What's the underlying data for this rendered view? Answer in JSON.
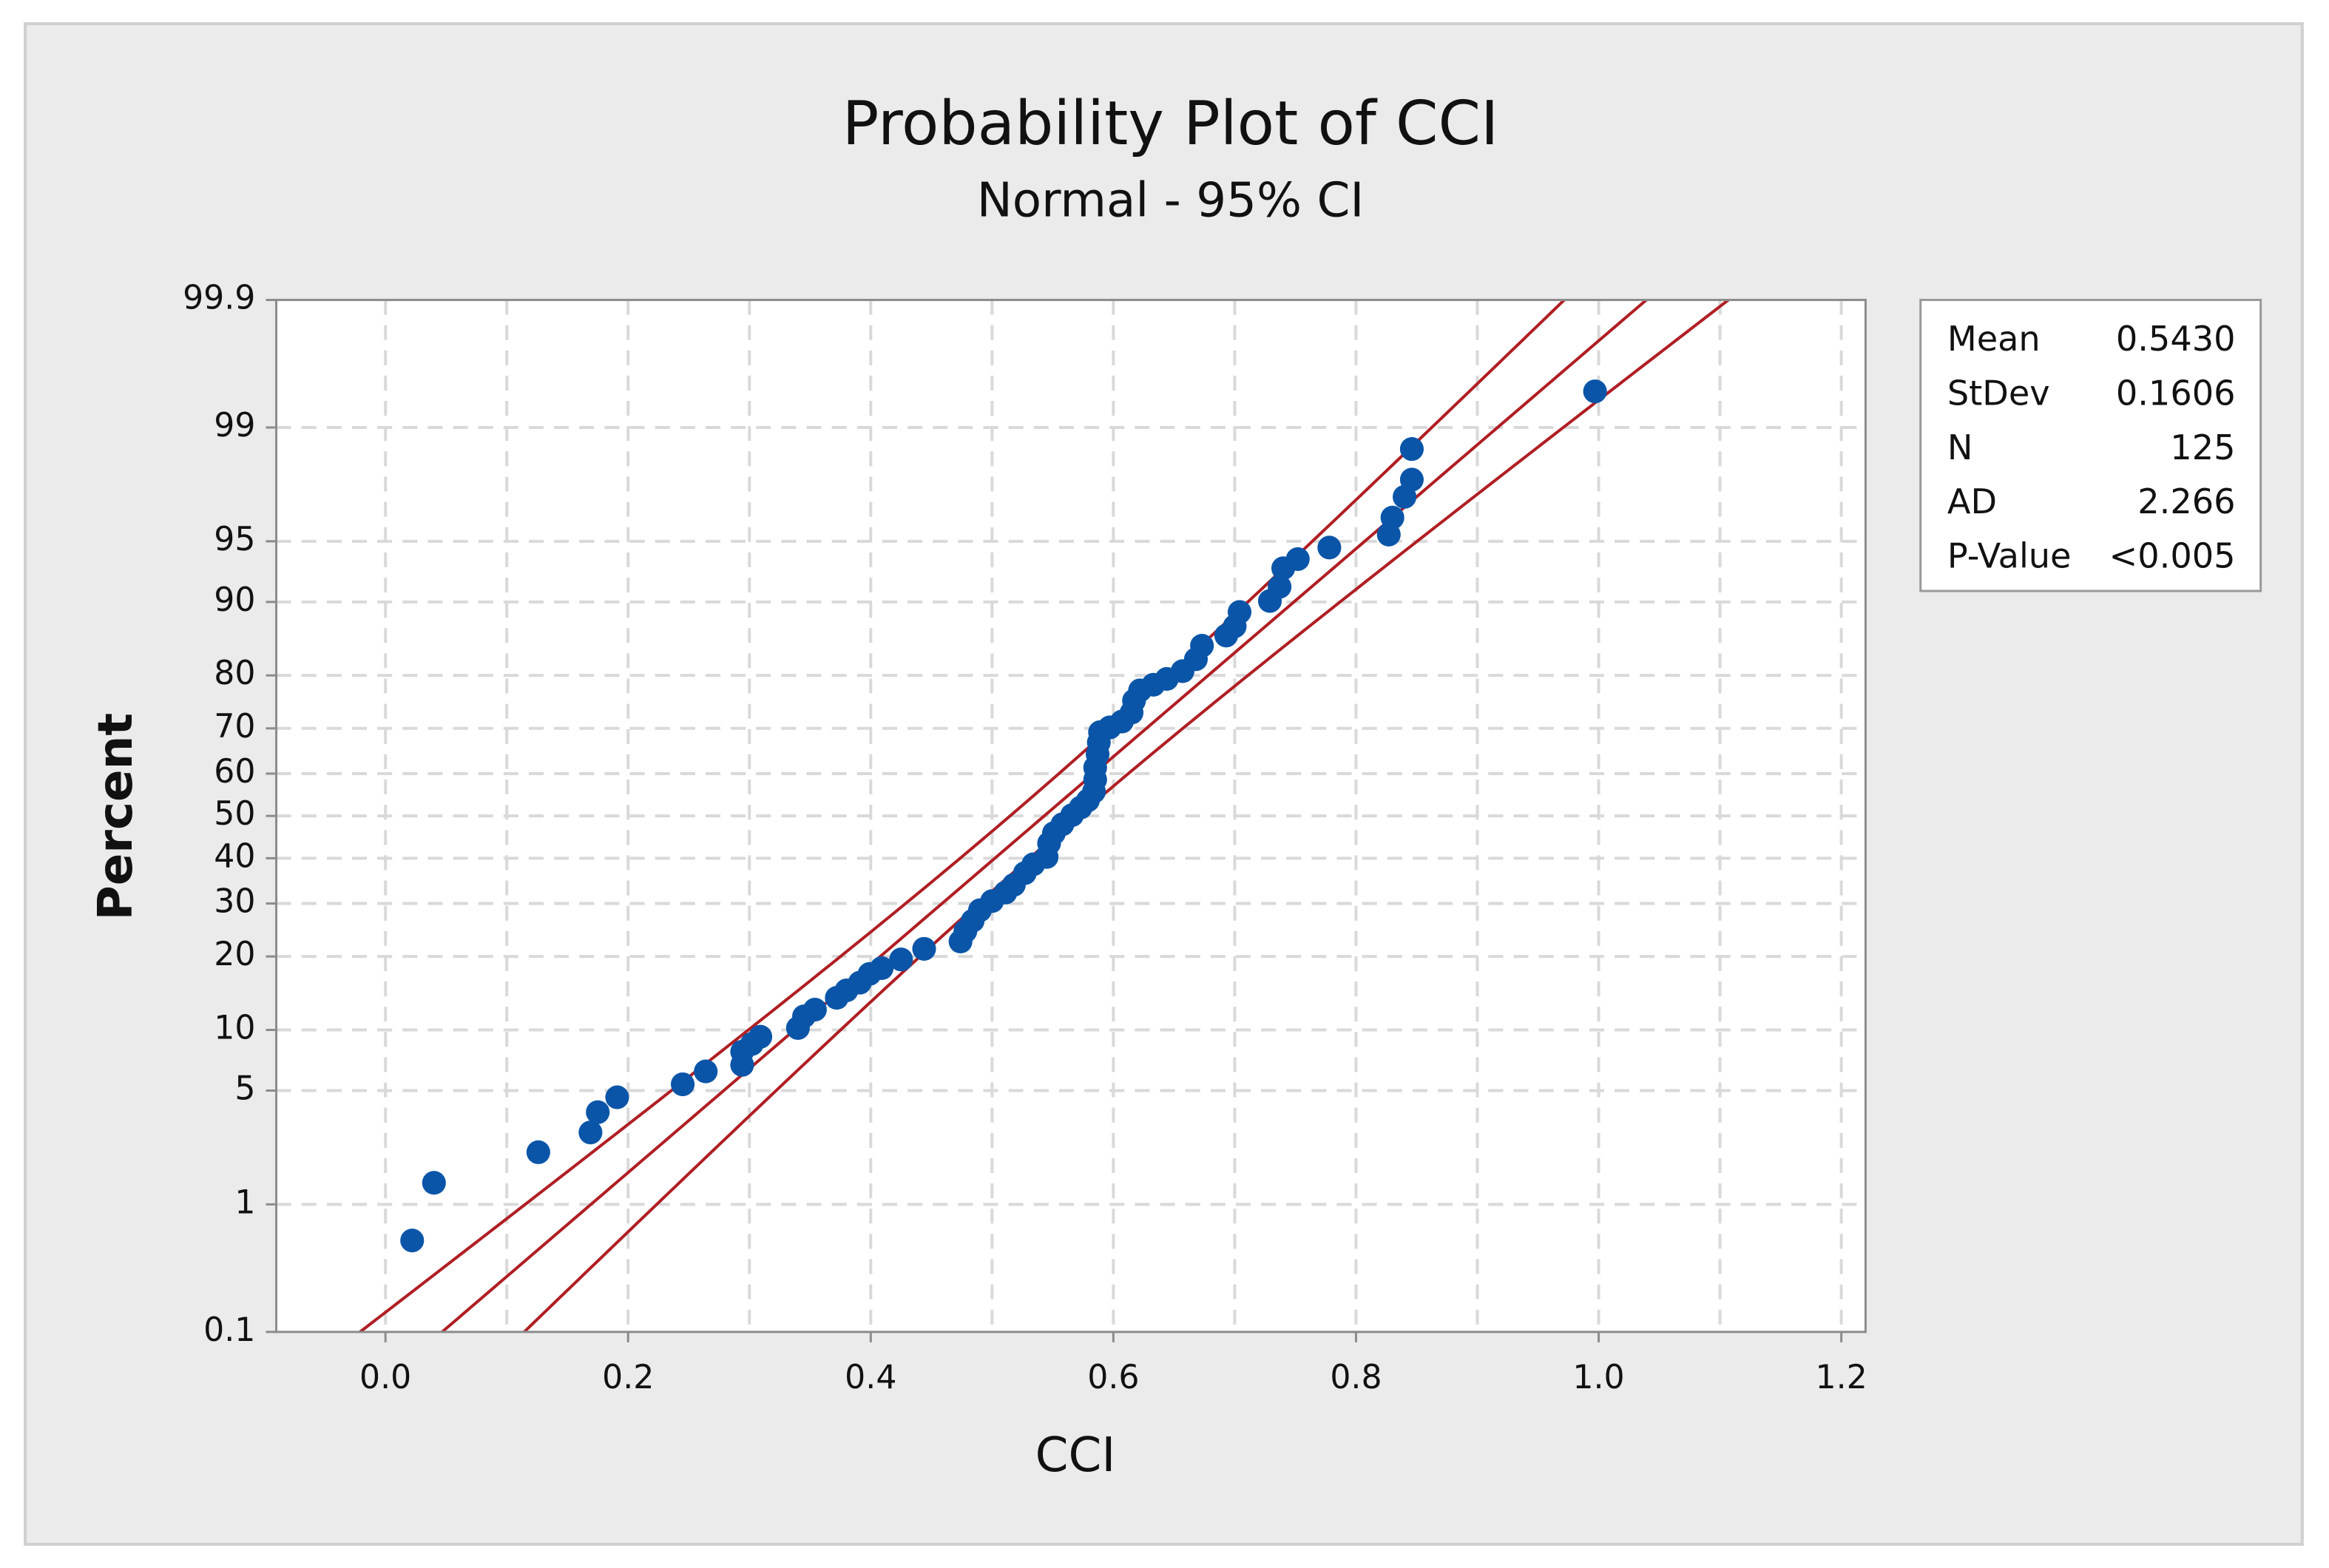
{
  "chart_data": {
    "type": "probability",
    "title": "Probability Plot of CCI",
    "subtitle": "Normal - 95% CI",
    "x_label": "CCI",
    "y_label": "Percent",
    "yscale": "probability",
    "distribution": "normal",
    "confidence": 95,
    "xlim": [
      -0.09,
      1.22
    ],
    "xticks": [
      {
        "value": 0,
        "label": "0.0"
      },
      0.2,
      0.4,
      0.6,
      0.8,
      {
        "value": 1,
        "label": "1.0"
      },
      1.2
    ],
    "xgrid_minor": [
      0.1,
      0.3,
      0.5,
      0.7,
      0.9,
      1.1
    ],
    "ylim": [
      0.1,
      99.9
    ],
    "yticks": [
      0.1,
      1,
      5,
      10,
      20,
      30,
      40,
      50,
      60,
      70,
      80,
      90,
      95,
      99,
      99.9
    ],
    "grid": true,
    "point_color": "#0a55a8",
    "line_color": "#b01e23",
    "x": [
      0.022,
      0.04,
      0.126,
      0.169,
      0.175,
      0.191,
      0.245,
      0.264,
      0.294,
      0.294,
      0.302,
      0.309,
      0.34,
      0.345,
      0.354,
      0.372,
      0.38,
      0.391,
      0.399,
      0.409,
      0.425,
      0.444,
      0.474,
      0.478,
      0.484,
      0.49,
      0.5,
      0.511,
      0.518,
      0.527,
      0.534,
      0.545,
      0.547,
      0.551,
      0.558,
      0.566,
      0.573,
      0.579,
      0.584,
      0.585,
      0.585,
      0.587,
      0.588,
      0.589,
      0.597,
      0.607,
      0.615,
      0.617,
      0.622,
      0.633,
      0.644,
      0.657,
      0.668,
      0.673,
      0.693,
      0.7,
      0.704,
      0.729,
      0.737,
      0.74,
      0.752,
      0.778,
      0.827,
      0.83,
      0.84,
      0.846,
      0.846,
      0.997
    ],
    "values": [
      0.55,
      1.4,
      2.2,
      2.9,
      3.8,
      4.6,
      5.4,
      6.3,
      6.8,
      7.9,
      8.6,
      9.3,
      10.2,
      11.5,
      12.3,
      13.8,
      14.8,
      15.9,
      17.2,
      18.1,
      19.5,
      21.3,
      22.6,
      24.5,
      26.5,
      28.6,
      30.5,
      32.3,
      34,
      36.6,
      38.6,
      40.3,
      43.5,
      45.9,
      48,
      50.2,
      52,
      53.7,
      55.8,
      58.6,
      61.4,
      64.4,
      67,
      69.2,
      70.2,
      71.4,
      73.2,
      75.5,
      77.4,
      78.4,
      79.4,
      80.7,
      82.6,
      84.6,
      86,
      87.2,
      88.9,
      90.1,
      91.5,
      93.1,
      93.8,
      94.6,
      95.4,
      96.3,
      97.2,
      97.8,
      98.6,
      99.45
    ],
    "stats": {
      "labels": [
        "Mean",
        "StDev",
        "N",
        "AD",
        "P-Value"
      ],
      "values": [
        {
          "value": 0.543,
          "label": "0.5430"
        },
        0.1606,
        125,
        2.266,
        {
          "value": 0.005,
          "label": "<0.005"
        }
      ]
    }
  }
}
